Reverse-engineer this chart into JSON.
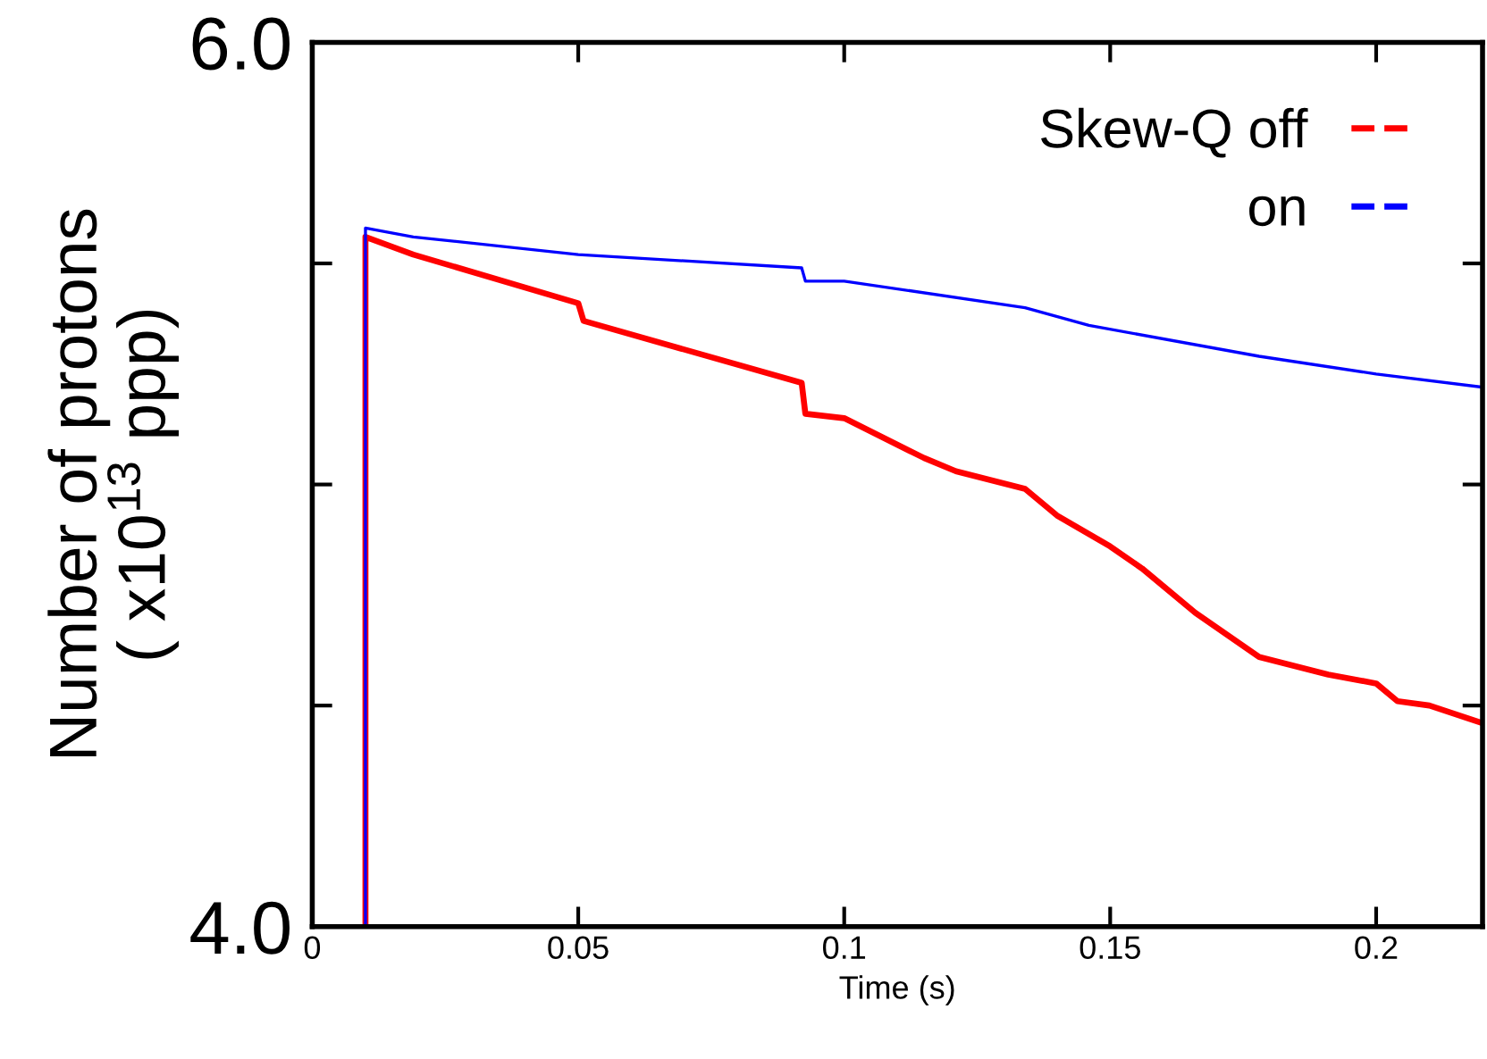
{
  "chart_data": {
    "type": "line",
    "xlabel": "Time (s)",
    "ylabel": "Number of protons\n( x10$^{13}$ ppp)",
    "xlim": [
      0,
      0.22
    ],
    "ylim": [
      4.0,
      6.0
    ],
    "xticks": [
      0,
      0.05,
      0.1,
      0.15,
      0.2
    ],
    "yticks": [
      {
        "value": 4.0,
        "label": "4.0"
      },
      {
        "value": 4.5,
        "label": null
      },
      {
        "value": 5.0,
        "label": null
      },
      {
        "value": 5.5,
        "label": null
      },
      {
        "value": 6.0,
        "label": "6.0"
      }
    ],
    "grid": false,
    "legend": "top right",
    "line_style": "solid",
    "marker": "none",
    "series": [
      {
        "name": "Skew-Q off",
        "color": "#ff0000",
        "x": [
          0.01,
          0.01,
          0.019,
          0.05,
          0.051,
          0.092,
          0.0927,
          0.1,
          0.115,
          0.121,
          0.134,
          0.14,
          0.15,
          0.156,
          0.166,
          0.178,
          0.191,
          0.2,
          0.204,
          0.21,
          0.22
        ],
        "values": [
          4.0,
          5.56,
          5.52,
          5.41,
          5.37,
          5.23,
          5.16,
          5.15,
          5.06,
          5.03,
          4.99,
          4.93,
          4.86,
          4.81,
          4.71,
          4.61,
          4.57,
          4.55,
          4.51,
          4.5,
          4.46
        ]
      },
      {
        "name": "on",
        "color": "#0000ff",
        "x": [
          0.01,
          0.01,
          0.019,
          0.05,
          0.092,
          0.0927,
          0.1,
          0.134,
          0.146,
          0.178,
          0.2,
          0.22
        ],
        "values": [
          4.0,
          5.58,
          5.56,
          5.52,
          5.49,
          5.46,
          5.46,
          5.4,
          5.36,
          5.29,
          5.25,
          5.22
        ]
      }
    ]
  }
}
